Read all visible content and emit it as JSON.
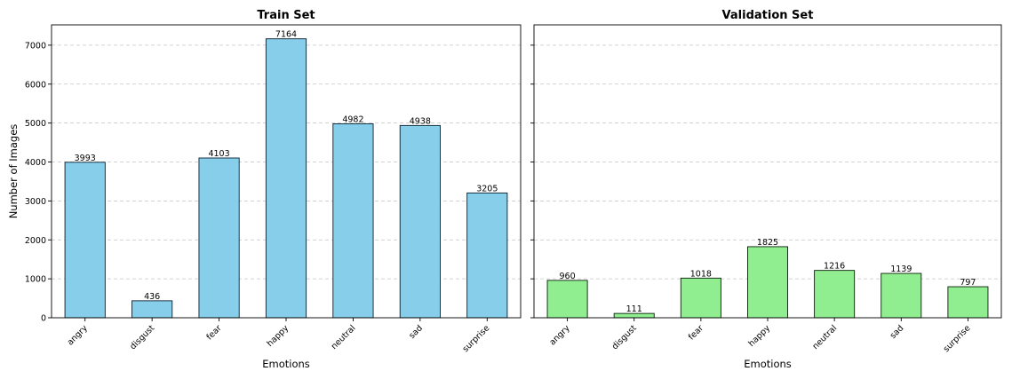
{
  "chart_data": [
    {
      "type": "bar",
      "title": "Train Set",
      "xlabel": "Emotions",
      "ylabel": "Number of Images",
      "categories": [
        "angry",
        "disgust",
        "fear",
        "happy",
        "neutral",
        "sad",
        "surprise"
      ],
      "values": [
        3993,
        436,
        4103,
        7164,
        4982,
        4938,
        3205
      ],
      "ylim": [
        0,
        7522
      ],
      "yticks": [
        0,
        1000,
        2000,
        3000,
        4000,
        5000,
        6000,
        7000
      ],
      "bar_color": "#87CEEB",
      "edge_color": "#0a1f2e",
      "grid": "y, dashed"
    },
    {
      "type": "bar",
      "title": "Validation Set",
      "xlabel": "Emotions",
      "ylabel": "",
      "categories": [
        "angry",
        "disgust",
        "fear",
        "happy",
        "neutral",
        "sad",
        "surprise"
      ],
      "values": [
        960,
        111,
        1018,
        1825,
        1216,
        1139,
        797
      ],
      "ylim": [
        0,
        7522
      ],
      "yticks": [
        0,
        1000,
        2000,
        3000,
        4000,
        5000,
        6000,
        7000
      ],
      "show_ytick_labels": false,
      "bar_color": "#90EE90",
      "edge_color": "#0a1f0a",
      "grid": "y, dashed"
    }
  ]
}
